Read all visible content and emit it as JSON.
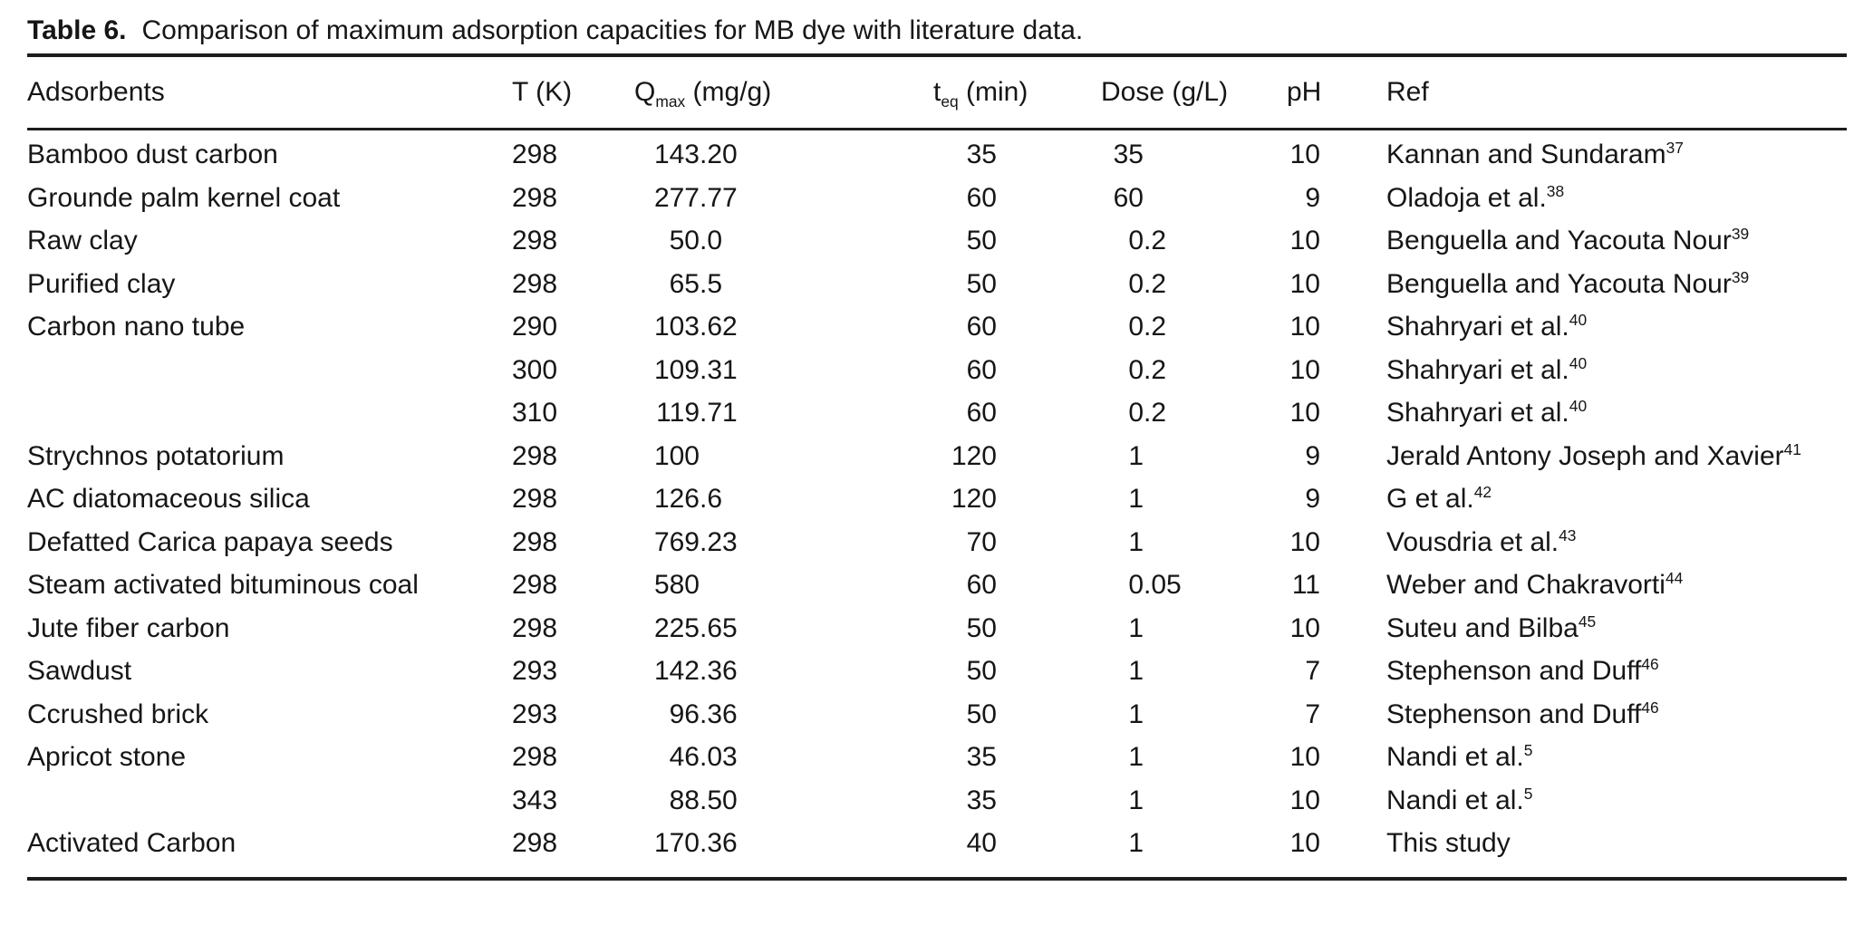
{
  "caption": {
    "label": "Table 6.",
    "text": "Comparison of maximum adsorption capacities for MB dye with literature data."
  },
  "table": {
    "columns": {
      "adsorbent": "Adsorbents",
      "t": "T (K)",
      "qmax": {
        "base": "Q",
        "sub": "max",
        "unit": " (mg/g)"
      },
      "teq": {
        "base": "t",
        "sub": "eq",
        "unit": " (min)"
      },
      "dose": "Dose (g/L)",
      "ph": "pH",
      "ref": "Ref"
    },
    "rows": [
      {
        "adsorbent": "Bamboo dust carbon",
        "t": "298",
        "qmax": "143.20",
        "teq": "35",
        "dose": "35",
        "ph": "10",
        "ref": "Kannan and Sundaram",
        "ref_sup": "37"
      },
      {
        "adsorbent": "Grounde palm kernel coat",
        "t": "298",
        "qmax": "277.77",
        "teq": "60",
        "dose": "60",
        "ph": "9",
        "ref": "Oladoja et al.",
        "ref_sup": "38"
      },
      {
        "adsorbent": "Raw clay",
        "t": "298",
        "qmax": "50.0",
        "teq": "50",
        "dose": "0.2",
        "ph": "10",
        "ref": "Benguella and Yacouta Nour",
        "ref_sup": "39"
      },
      {
        "adsorbent": "Purified clay",
        "t": "298",
        "qmax": "65.5",
        "teq": "50",
        "dose": "0.2",
        "ph": "10",
        "ref": "Benguella and Yacouta Nour",
        "ref_sup": "39"
      },
      {
        "adsorbent": "Carbon nano tube",
        "t": "290",
        "qmax": "103.62",
        "teq": "60",
        "dose": "0.2",
        "ph": "10",
        "ref": "Shahryari et al.",
        "ref_sup": "40"
      },
      {
        "adsorbent": "",
        "t": "300",
        "qmax": "109.31",
        "teq": "60",
        "dose": "0.2",
        "ph": "10",
        "ref": "Shahryari et al.",
        "ref_sup": "40"
      },
      {
        "adsorbent": "",
        "t": "310",
        "qmax": "119.71",
        "teq": "60",
        "dose": "0.2",
        "ph": "10",
        "ref": "Shahryari et al.",
        "ref_sup": "40"
      },
      {
        "adsorbent": "Strychnos potatorium",
        "t": "298",
        "qmax": "100",
        "teq": "120",
        "dose": "1",
        "ph": "9",
        "ref": "Jerald Antony Joseph and Xavier",
        "ref_sup": "41"
      },
      {
        "adsorbent": "AC diatomaceous silica",
        "t": "298",
        "qmax": "126.6",
        "teq": "120",
        "dose": "1",
        "ph": "9",
        "ref": "G et al.",
        "ref_sup": "42"
      },
      {
        "adsorbent": "Defatted Carica papaya seeds",
        "t": "298",
        "qmax": "769.23",
        "teq": "70",
        "dose": "1",
        "ph": "10",
        "ref": "Vousdria et al.",
        "ref_sup": "43"
      },
      {
        "adsorbent": "Steam activated bituminous coal",
        "t": "298",
        "qmax": "580",
        "teq": "60",
        "dose": "0.05",
        "ph": "11",
        "ref": "Weber and Chakravorti",
        "ref_sup": "44"
      },
      {
        "adsorbent": "Jute fiber carbon",
        "t": "298",
        "qmax": "225.65",
        "teq": "50",
        "dose": "1",
        "ph": "10",
        "ref": "Suteu and Bilba",
        "ref_sup": "45"
      },
      {
        "adsorbent": "Sawdust",
        "t": "293",
        "qmax": "142.36",
        "teq": "50",
        "dose": "1",
        "ph": "7",
        "ref": "Stephenson and Duff",
        "ref_sup": "46"
      },
      {
        "adsorbent": "Ccrushed brick",
        "t": "293",
        "qmax": "96.36",
        "teq": "50",
        "dose": "1",
        "ph": "7",
        "ref": "Stephenson and Duff",
        "ref_sup": "46"
      },
      {
        "adsorbent": "Apricot stone",
        "t": "298",
        "qmax": "46.03",
        "teq": "35",
        "dose": "1",
        "ph": "10",
        "ref": "Nandi et al.",
        "ref_sup": "5"
      },
      {
        "adsorbent": "",
        "t": "343",
        "qmax": "88.50",
        "teq": "35",
        "dose": "1",
        "ph": "10",
        "ref": "Nandi et al.",
        "ref_sup": "5"
      },
      {
        "adsorbent": "Activated Carbon",
        "t": "298",
        "qmax": "170.36",
        "teq": "40",
        "dose": "1",
        "ph": "10",
        "ref": "This study",
        "ref_sup": ""
      }
    ]
  },
  "colors": {
    "text": "#161616",
    "rule": "#1c1c1c",
    "background": "#ffffff"
  }
}
